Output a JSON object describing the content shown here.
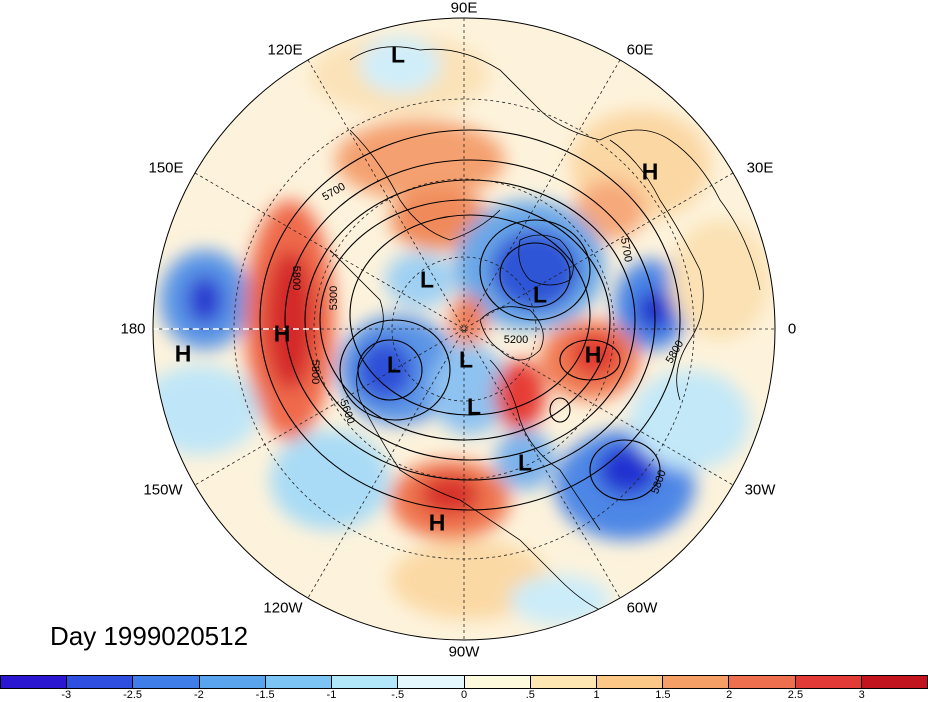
{
  "map": {
    "projection": "north polar stereographic",
    "longitude_labels": [
      "90E",
      "60E",
      "30E",
      "0",
      "30W",
      "60W",
      "90W",
      "120W",
      "150W",
      "180",
      "150E",
      "120E"
    ],
    "contour_labels": [
      "5700",
      "5800",
      "5300",
      "5200",
      "5700",
      "5800",
      "5800",
      "5600",
      "5800"
    ],
    "pressure_centers": [
      {
        "type": "L",
        "name": "low-siberia-north"
      },
      {
        "type": "H",
        "name": "high-scandinavia"
      },
      {
        "type": "L",
        "name": "low-kara-sea"
      },
      {
        "type": "L",
        "name": "low-east-siberia"
      },
      {
        "type": "H",
        "name": "high-north-pacific"
      },
      {
        "type": "H",
        "name": "high-dateline"
      },
      {
        "type": "L",
        "name": "low-alaska"
      },
      {
        "type": "L",
        "name": "low-canadian-arctic"
      },
      {
        "type": "L",
        "name": "low-hudson-bay"
      },
      {
        "type": "H",
        "name": "high-greenland-east"
      },
      {
        "type": "L",
        "name": "low-labrador"
      },
      {
        "type": "H",
        "name": "high-gulf-of-mexico"
      }
    ],
    "anomaly_colors": {
      "positive_strong": "#d7322f",
      "positive_mid": "#f07d4f",
      "positive_weak": "#fbd6a1",
      "neutral": "#fdf6e1",
      "negative_weak": "#c7ecf8",
      "negative_mid": "#6bb4ec",
      "negative_strong": "#2b44d9"
    }
  },
  "day_label": "Day 1999020512",
  "colorbar": {
    "colors": [
      "#2b17d1",
      "#2f4fe0",
      "#3f7ee8",
      "#5aa4ee",
      "#7cc4f3",
      "#b2e7f9",
      "#e4f7fc",
      "#fdf9dc",
      "#fde6b2",
      "#fbc888",
      "#f59e66",
      "#ee6f4e",
      "#e23a36",
      "#c1141f"
    ],
    "ticks": [
      "-3",
      "-2.5",
      "-2",
      "-1.5",
      "-1",
      "-.5",
      "0",
      ".5",
      "1",
      "1.5",
      "2",
      "2.5",
      "3"
    ]
  }
}
